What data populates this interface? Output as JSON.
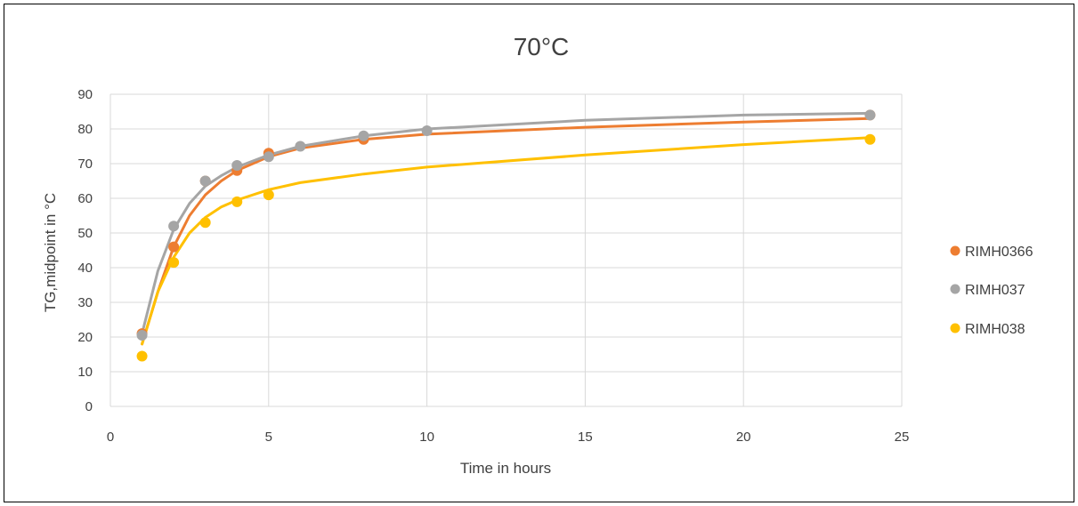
{
  "chart_data": {
    "type": "scatter",
    "title": "70°C",
    "xlabel": "Time in hours",
    "ylabel": "TG,midpoint in °C",
    "xlim": [
      0,
      25
    ],
    "ylim": [
      0,
      90
    ],
    "x_ticks": [
      "0",
      "5",
      "10",
      "15",
      "20",
      "25"
    ],
    "y_ticks": [
      "0",
      "10",
      "20",
      "30",
      "40",
      "50",
      "60",
      "70",
      "80",
      "90"
    ],
    "grid": true,
    "legend_position": "right",
    "series": [
      {
        "name": "RIMH0366",
        "color": "#ED7D31",
        "points": [
          [
            1,
            21
          ],
          [
            2,
            46
          ],
          [
            3,
            65
          ],
          [
            4,
            68
          ],
          [
            5,
            73
          ],
          [
            8,
            77
          ],
          [
            24,
            84
          ]
        ],
        "trend": [
          [
            1,
            18
          ],
          [
            1.5,
            33
          ],
          [
            2,
            46
          ],
          [
            2.5,
            55
          ],
          [
            3,
            61
          ],
          [
            3.5,
            65
          ],
          [
            4,
            68
          ],
          [
            5,
            72
          ],
          [
            6,
            74.5
          ],
          [
            8,
            77
          ],
          [
            10,
            78.5
          ],
          [
            15,
            80.5
          ],
          [
            20,
            82
          ],
          [
            24,
            83
          ]
        ]
      },
      {
        "name": "RIMH037",
        "color": "#A5A5A5",
        "points": [
          [
            1,
            20.5
          ],
          [
            2,
            52
          ],
          [
            3,
            65
          ],
          [
            4,
            69.5
          ],
          [
            5,
            72
          ],
          [
            6,
            75
          ],
          [
            8,
            78
          ],
          [
            10,
            79.5
          ],
          [
            24,
            84
          ]
        ],
        "trend": [
          [
            1,
            21
          ],
          [
            1.5,
            39
          ],
          [
            2,
            51
          ],
          [
            2.5,
            58.5
          ],
          [
            3,
            63.5
          ],
          [
            3.5,
            66.5
          ],
          [
            4,
            69
          ],
          [
            5,
            72.5
          ],
          [
            6,
            75
          ],
          [
            8,
            78
          ],
          [
            10,
            80
          ],
          [
            15,
            82.5
          ],
          [
            20,
            84
          ],
          [
            24,
            84.5
          ]
        ]
      },
      {
        "name": "RIMH038",
        "color": "#FFC000",
        "points": [
          [
            1,
            14.5
          ],
          [
            2,
            41.5
          ],
          [
            3,
            53
          ],
          [
            4,
            59
          ],
          [
            5,
            61
          ],
          [
            24,
            77
          ]
        ],
        "trend": [
          [
            1,
            18
          ],
          [
            1.5,
            33
          ],
          [
            2,
            43
          ],
          [
            2.5,
            50
          ],
          [
            3,
            54.5
          ],
          [
            3.5,
            57.5
          ],
          [
            4,
            59.5
          ],
          [
            5,
            62.5
          ],
          [
            6,
            64.5
          ],
          [
            8,
            67
          ],
          [
            10,
            69
          ],
          [
            15,
            72.5
          ],
          [
            20,
            75.5
          ],
          [
            24,
            77.5
          ]
        ]
      }
    ]
  }
}
